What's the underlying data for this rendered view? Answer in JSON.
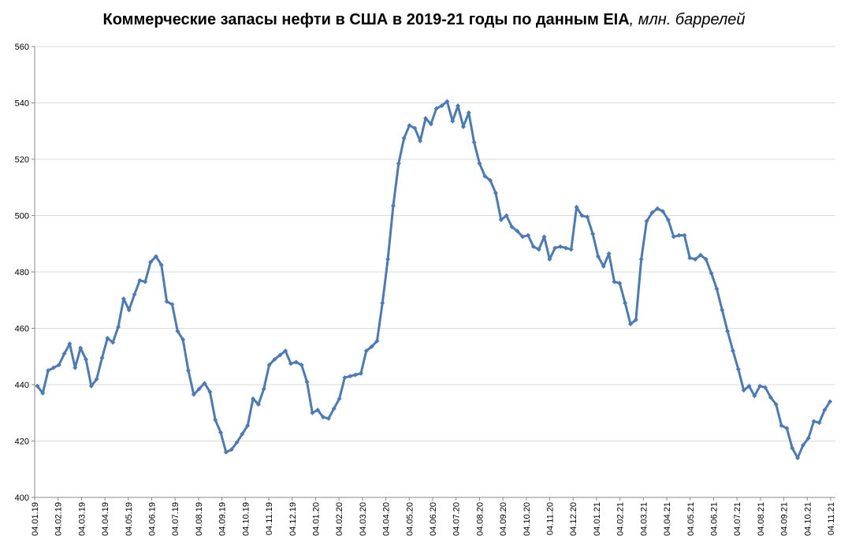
{
  "chart_data": {
    "type": "line",
    "title": "Коммерческие запасы нефти в США в 2019-21 годы по данным EIA",
    "title_unit": ", млн. баррелей",
    "xlabel": "",
    "ylabel": "",
    "ylim": [
      400,
      560
    ],
    "y_ticks": [
      "400",
      "420",
      "440",
      "460",
      "480",
      "500",
      "520",
      "540",
      "560"
    ],
    "x_tick_labels": [
      "04.01.19",
      "04.02.19",
      "04.03.19",
      "04.04.19",
      "04.05.19",
      "04.06.19",
      "04.07.19",
      "04.08.19",
      "04.09.19",
      "04.10.19",
      "04.11.19",
      "04.12.19",
      "04.01.20",
      "04.02.20",
      "04.03.20",
      "04.04.20",
      "04.05.20",
      "04.06.20",
      "04.07.20",
      "04.08.20",
      "04.09.20",
      "04.10.20",
      "04.11.20",
      "04.12.20",
      "04.01.21",
      "04.02.21",
      "04.03.21",
      "04.04.21",
      "04.05.21",
      "04.06.21",
      "04.07.21",
      "04.08.21",
      "04.09.21",
      "04.10.21",
      "04.11.21"
    ],
    "grid": true,
    "line_color": "#4a7ab8",
    "series": [
      {
        "values": [
          439.5,
          437.0,
          445.0,
          446.0,
          447.0,
          451.0,
          454.5,
          446.0,
          453.0,
          449.0,
          439.5,
          442.0,
          449.5,
          456.5,
          455.0,
          460.5,
          470.5,
          466.5,
          472.0,
          477.0,
          476.5,
          483.5,
          485.5,
          482.5,
          469.5,
          468.5,
          459.0,
          456.0,
          445.0,
          436.5,
          438.5,
          440.5,
          437.5,
          427.5,
          423.0,
          416.0,
          417.0,
          419.5,
          422.5,
          425.5,
          435.0,
          433.0,
          438.5,
          447.0,
          449.0,
          450.5,
          452.0,
          447.5,
          448.0,
          447.0,
          441.0,
          430.0,
          431.0,
          428.5,
          428.0,
          431.5,
          435.0,
          442.5,
          443.0,
          443.5,
          444.0,
          452.0,
          453.5,
          455.5,
          469.0,
          484.5,
          503.5,
          518.5,
          527.5,
          532.0,
          531.0,
          526.5,
          534.5,
          532.5,
          538.0,
          539.0,
          540.5,
          533.5,
          539.0,
          531.5,
          536.5,
          526.0,
          518.5,
          514.0,
          512.5,
          508.0,
          498.5,
          500.0,
          496.0,
          494.5,
          492.5,
          493.0,
          489.0,
          488.0,
          492.5,
          484.5,
          488.5,
          489.0,
          488.5,
          488.0,
          503.0,
          500.0,
          499.5,
          493.5,
          485.5,
          482.0,
          486.5,
          476.5,
          476.0,
          469.0,
          461.5,
          463.0,
          484.5,
          498.0,
          501.0,
          502.5,
          501.5,
          498.5,
          492.5,
          493.0,
          493.0,
          485.0,
          484.5,
          486.0,
          484.5,
          479.5,
          474.0,
          466.5,
          459.0,
          452.0,
          445.5,
          438.0,
          439.5,
          436.0,
          439.5,
          439.0,
          435.5,
          433.0,
          425.5,
          424.5,
          417.5,
          414.0,
          418.5,
          421.0,
          427.0,
          426.5,
          431.0,
          434.0
        ]
      }
    ]
  }
}
